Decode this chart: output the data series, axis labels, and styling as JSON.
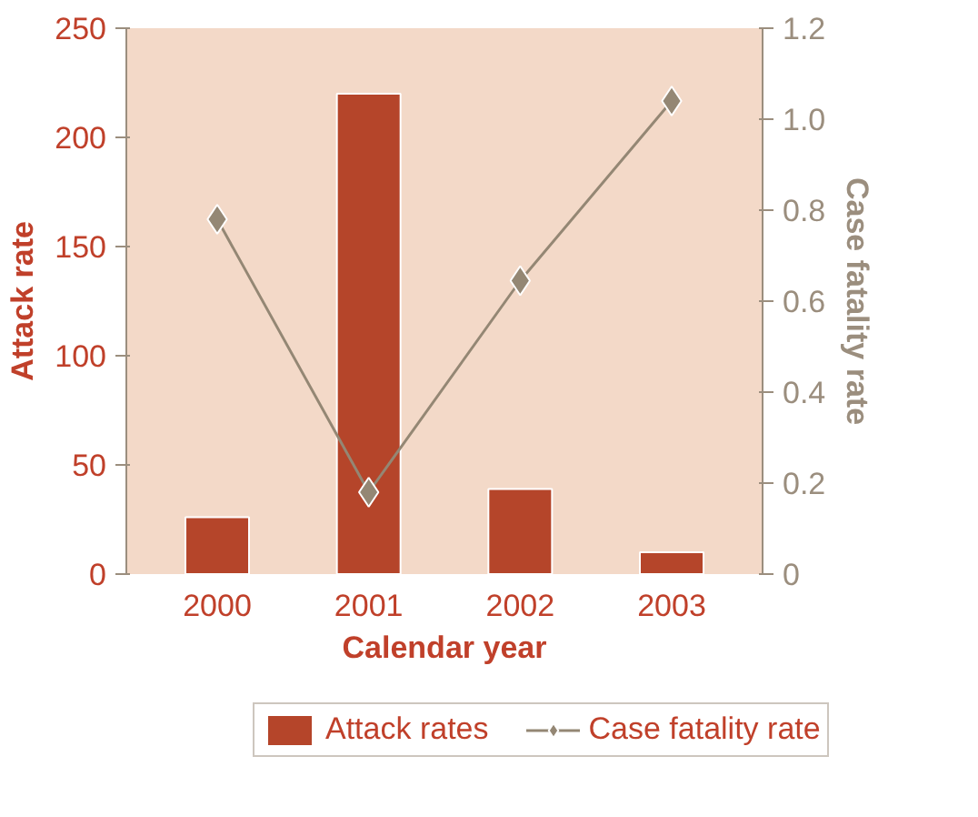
{
  "chart_data": {
    "type": "bar",
    "xlabel": "Calendar year",
    "ylabel": "Attack rate",
    "y2label": "Case fatality rate",
    "categories": [
      "2000",
      "2001",
      "2002",
      "2003"
    ],
    "series": [
      {
        "name": "Attack rates",
        "color": "#b5452a",
        "values": [
          26,
          220,
          39,
          10
        ]
      },
      {
        "name": "Case fatality rate",
        "type": "line",
        "axis": "y2",
        "color": "#948774",
        "values": [
          0.78,
          0.18,
          0.645,
          1.04
        ]
      }
    ],
    "ylim": [
      0,
      250
    ],
    "yticks": [
      0,
      50,
      100,
      150,
      200,
      250
    ],
    "y2lim": [
      0,
      1.2
    ],
    "y2ticks": [
      {
        "value": 0,
        "label": "0"
      },
      {
        "value": 0.2,
        "label": "0.2"
      },
      {
        "value": 0.4,
        "label": "0.4"
      },
      {
        "value": 0.6,
        "label": "0.6"
      },
      {
        "value": 0.8,
        "label": "0.8"
      },
      {
        "value": 1.0,
        "label": "1.0"
      },
      {
        "value": 1.2,
        "label": "1.2"
      }
    ],
    "marker": "diamond",
    "grid": false,
    "legend": "bottom"
  }
}
